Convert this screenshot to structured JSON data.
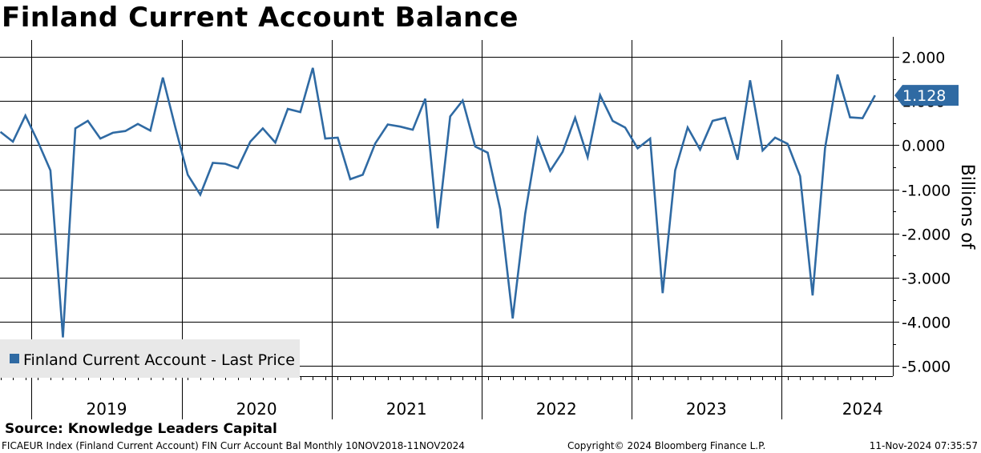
{
  "chart_data": {
    "type": "line",
    "title": "Finland Current Account Balance",
    "ylabel": "Billions of",
    "ylim": [
      -5.0,
      2.0
    ],
    "yticks": [
      2.0,
      1.0,
      0.0,
      -1.0,
      -2.0,
      -3.0,
      -4.0,
      -5.0
    ],
    "ytick_labels": [
      "2.000",
      "1.000",
      "0.000",
      "-1.000",
      "-2.000",
      "-3.000",
      "-4.000",
      "-5.000"
    ],
    "x_range": [
      "2018-10",
      "2024-11"
    ],
    "year_labels": [
      "2019",
      "2020",
      "2021",
      "2022",
      "2023",
      "2024"
    ],
    "grid": true,
    "legend_position": "bottom-left",
    "last_value_label": "1.128",
    "series": [
      {
        "name": "Finland Current Account - Last Price",
        "color": "#2f6aa3",
        "points": [
          [
            "2018-10",
            0.3
          ],
          [
            "2018-11",
            0.08
          ],
          [
            "2018-12",
            0.67
          ],
          [
            "2019-01",
            0.08
          ],
          [
            "2019-02",
            -0.57
          ],
          [
            "2019-03",
            -4.35
          ],
          [
            "2019-04",
            0.38
          ],
          [
            "2019-05",
            0.55
          ],
          [
            "2019-06",
            0.15
          ],
          [
            "2019-07",
            0.28
          ],
          [
            "2019-08",
            0.32
          ],
          [
            "2019-09",
            0.48
          ],
          [
            "2019-10",
            0.33
          ],
          [
            "2019-11",
            1.53
          ],
          [
            "2019-12",
            0.4
          ],
          [
            "2020-01",
            -0.67
          ],
          [
            "2020-02",
            -1.12
          ],
          [
            "2020-03",
            -0.4
          ],
          [
            "2020-04",
            -0.42
          ],
          [
            "2020-05",
            -0.52
          ],
          [
            "2020-06",
            0.08
          ],
          [
            "2020-07",
            0.38
          ],
          [
            "2020-08",
            0.06
          ],
          [
            "2020-09",
            0.82
          ],
          [
            "2020-10",
            0.75
          ],
          [
            "2020-11",
            1.75
          ],
          [
            "2020-12",
            0.15
          ],
          [
            "2021-01",
            0.17
          ],
          [
            "2021-02",
            -0.77
          ],
          [
            "2021-03",
            -0.67
          ],
          [
            "2021-04",
            0.04
          ],
          [
            "2021-05",
            0.47
          ],
          [
            "2021-06",
            0.42
          ],
          [
            "2021-07",
            0.35
          ],
          [
            "2021-08",
            1.05
          ],
          [
            "2021-09",
            -1.88
          ],
          [
            "2021-10",
            0.65
          ],
          [
            "2021-11",
            1.01
          ],
          [
            "2021-12",
            -0.03
          ],
          [
            "2022-01",
            -0.17
          ],
          [
            "2022-02",
            -1.45
          ],
          [
            "2022-03",
            -3.92
          ],
          [
            "2022-04",
            -1.55
          ],
          [
            "2022-05",
            0.15
          ],
          [
            "2022-06",
            -0.58
          ],
          [
            "2022-07",
            -0.15
          ],
          [
            "2022-08",
            0.62
          ],
          [
            "2022-09",
            -0.27
          ],
          [
            "2022-10",
            1.13
          ],
          [
            "2022-11",
            0.55
          ],
          [
            "2022-12",
            0.4
          ],
          [
            "2023-01",
            -0.07
          ],
          [
            "2023-02",
            0.15
          ],
          [
            "2023-03",
            -3.35
          ],
          [
            "2023-04",
            -0.57
          ],
          [
            "2023-05",
            0.4
          ],
          [
            "2023-06",
            -0.1
          ],
          [
            "2023-07",
            0.55
          ],
          [
            "2023-08",
            0.62
          ],
          [
            "2023-09",
            -0.33
          ],
          [
            "2023-10",
            1.47
          ],
          [
            "2023-11",
            -0.12
          ],
          [
            "2023-12",
            0.17
          ],
          [
            "2024-01",
            0.03
          ],
          [
            "2024-02",
            -0.7
          ],
          [
            "2024-03",
            -3.4
          ],
          [
            "2024-04",
            -0.07
          ],
          [
            "2024-05",
            1.6
          ],
          [
            "2024-06",
            0.63
          ],
          [
            "2024-07",
            0.61
          ],
          [
            "2024-08",
            1.128
          ]
        ]
      }
    ]
  },
  "footer": {
    "source": "Source: Knowledge Leaders Capital",
    "meta": "FICAEUR Index (Finland Current Account) FIN Curr Account Bal  Monthly 10NOV2018-11NOV2024",
    "copyright": "Copyright© 2024 Bloomberg Finance L.P.",
    "timestamp": "11-Nov-2024 07:35:57"
  }
}
